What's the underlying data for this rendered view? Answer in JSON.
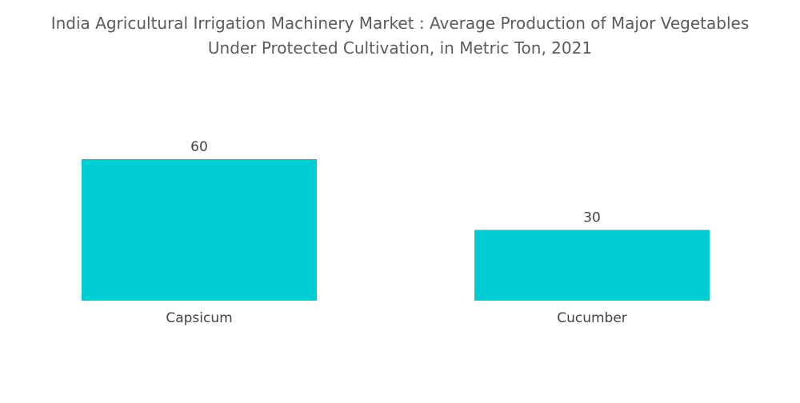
{
  "chart_data": {
    "type": "bar",
    "title_lines": [
      "India Agricultural Irrigation Machinery Market : Average Production of Major Vegetables",
      "Under Protected Cultivation, in Metric Ton, 2021"
    ],
    "categories": [
      "Capsicum",
      "Cucumber"
    ],
    "values": [
      60,
      30
    ],
    "data_labels": [
      "60",
      "30"
    ],
    "xlabel": "",
    "ylabel": "",
    "ylim": [
      0,
      60
    ],
    "grid": false,
    "legend": "none",
    "bar_color": "#00cdd1"
  }
}
